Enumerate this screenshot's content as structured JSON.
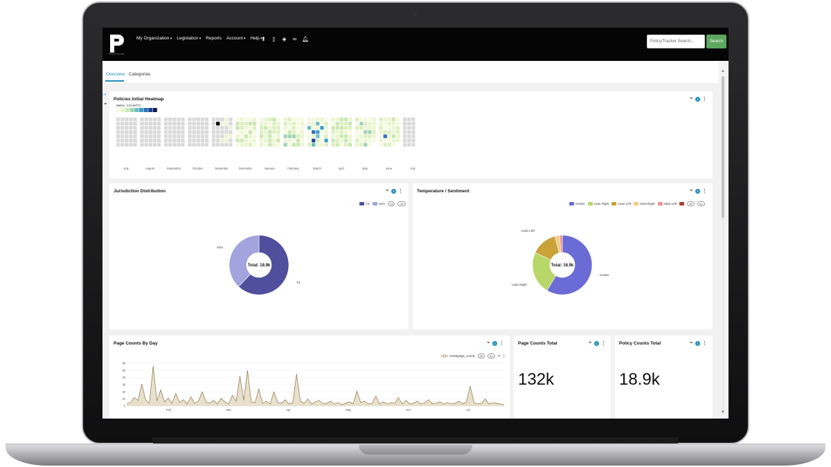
{
  "nav": {
    "logo_icon": "p-logo-icon",
    "logo_sub": "POLICYFUSE",
    "menu": [
      {
        "label": "My Organization",
        "dropdown": true
      },
      {
        "label": "Legislation",
        "dropdown": true
      },
      {
        "label": "Reports",
        "dropdown": false
      },
      {
        "label": "Account",
        "dropdown": true
      },
      {
        "label": "Help",
        "dropdown": true
      }
    ],
    "icons": [
      "upload-icon",
      "clipboard-icon",
      "diamond-icon",
      "binoculars-icon",
      "bell-icon"
    ],
    "search_placeholder": "Policy/Tracker Search...",
    "search_button": "Search",
    "search_button_color": "#5da65d"
  },
  "tabs": [
    {
      "label": "Overview",
      "active": true
    },
    {
      "label": "Categories",
      "active": false
    }
  ],
  "heatmap": {
    "title": "Policies Initial Heatmap",
    "metric_label": "Metric: COUNT(*)",
    "filter_count": "1",
    "months": [
      "July",
      "August",
      "September",
      "October",
      "November",
      "December",
      "January",
      "February",
      "March",
      "April",
      "May",
      "June",
      "July"
    ],
    "scale_colors": [
      "#f7fbe3",
      "#e6f4c9",
      "#c9e8b8",
      "#9fd3b5",
      "#6cbcc4",
      "#3e9cc6",
      "#2d6fb4",
      "#1f3f8f",
      "#0b1a54"
    ]
  },
  "jurisdiction": {
    "title": "Jurisdiction Distribution",
    "filter_count": "1",
    "legend": [
      {
        "name": "TX",
        "color": "#4f4f9e"
      },
      {
        "name": "USA",
        "color": "#a3a3de"
      }
    ],
    "pill_all": "All",
    "pill_inv": "Inv",
    "total_label": "Total: 18.9k",
    "chart_data": {
      "type": "pie",
      "categories": [
        "TX",
        "USA"
      ],
      "values": [
        62,
        38
      ]
    }
  },
  "sentiment": {
    "title": "Temperature / Sentiment",
    "filter_count": "1",
    "legend": [
      {
        "name": "Center",
        "color": "#6b6bd6"
      },
      {
        "name": "Lean Right",
        "color": "#b8d76a"
      },
      {
        "name": "Lean Left",
        "color": "#c9a23a"
      },
      {
        "name": "Hard Right",
        "color": "#f0cb8a"
      },
      {
        "name": "Hard Left",
        "color": "#f09090"
      },
      {
        "name": "",
        "color": "#b03a3a"
      }
    ],
    "pill_all": "All",
    "pill_inv": "Inv",
    "total_label": "Total: 18.9k",
    "chart_data": {
      "type": "pie",
      "categories": [
        "Center",
        "Lean Right",
        "Lean Left",
        "Hard Right",
        "Hard Left"
      ],
      "values": [
        58,
        23,
        14,
        2.5,
        1.5
      ]
    }
  },
  "page_counts_day": {
    "title": "Page Counts By Day",
    "filter_count": "1",
    "legend_label": "SUM(page_count)",
    "legend_color": "#a08a5c",
    "pill_all": "All",
    "pill_inv": "Inv",
    "chart_data": {
      "type": "area",
      "yticks": [
        "0",
        "1k",
        "2k",
        "3k",
        "4k",
        "5k",
        "6k"
      ],
      "ylim": [
        0,
        6000
      ],
      "xticks": [
        "Feb",
        "Mar",
        "Apr",
        "May",
        "Jun",
        "Jul"
      ],
      "x": [
        0,
        2,
        4,
        6,
        8,
        10,
        12,
        14,
        16,
        18,
        20,
        22,
        24,
        26,
        28,
        30,
        32,
        34,
        36,
        38,
        40,
        42,
        44,
        46,
        48,
        50,
        52,
        54,
        56,
        58,
        60,
        62,
        64,
        66,
        68,
        70,
        72,
        74,
        76,
        78,
        80,
        82,
        84,
        86,
        88,
        90,
        92,
        94,
        96,
        98,
        100,
        102,
        104,
        106,
        108,
        110,
        112,
        114,
        116,
        118,
        120,
        122,
        124,
        126,
        128,
        130,
        132,
        134,
        136,
        138,
        140,
        142,
        144,
        146,
        148,
        150,
        152,
        154,
        156,
        158,
        160,
        162,
        164,
        166,
        168,
        170,
        172,
        174,
        176,
        178,
        180,
        182,
        184,
        186,
        188,
        190,
        192,
        194,
        196,
        198,
        200
      ],
      "values": [
        300,
        500,
        1200,
        800,
        3100,
        900,
        400,
        5600,
        700,
        2300,
        600,
        1100,
        400,
        1800,
        500,
        900,
        300,
        1300,
        400,
        700,
        2000,
        600,
        400,
        800,
        300,
        1100,
        600,
        300,
        1500,
        700,
        4200,
        800,
        5000,
        600,
        500,
        2400,
        400,
        700,
        300,
        2000,
        500,
        400,
        900,
        300,
        500,
        4500,
        700,
        400,
        1000,
        300,
        600,
        800,
        300,
        400,
        700,
        300,
        500,
        200,
        400,
        600,
        300,
        2100,
        500,
        700,
        300,
        400,
        1400,
        300,
        600,
        300,
        500,
        400,
        1200,
        300,
        800,
        300,
        400,
        700,
        300,
        500,
        900,
        300,
        400,
        600,
        300,
        500,
        300,
        400,
        700,
        300,
        600,
        2800,
        500,
        300,
        400,
        1000,
        300,
        500,
        400,
        300,
        200
      ]
    }
  },
  "page_counts_total": {
    "title": "Page Counts Total",
    "filter_count": "1",
    "value": "132k"
  },
  "policy_counts_total": {
    "title": "Policy Counts Total",
    "filter_count": "1",
    "value": "18.9k"
  }
}
